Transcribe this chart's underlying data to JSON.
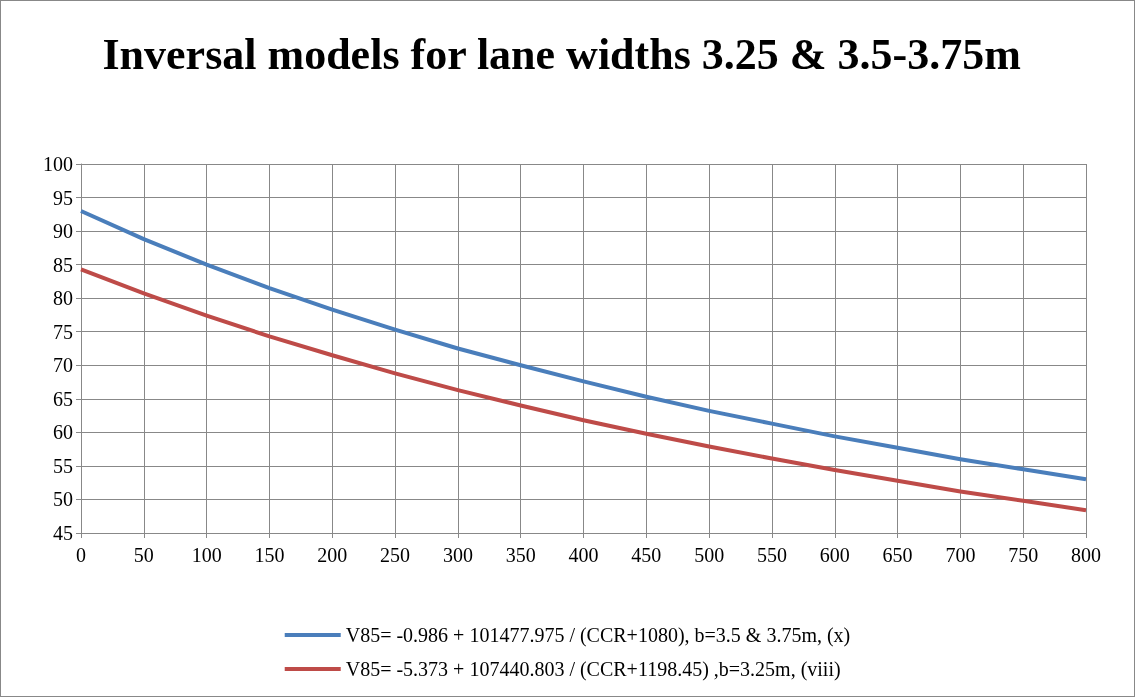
{
  "chart_data": {
    "type": "line",
    "title": "Inversal models for lane widths 3.25 & 3.5-3.75m",
    "x": [
      0,
      50,
      100,
      150,
      200,
      250,
      300,
      350,
      400,
      450,
      500,
      550,
      600,
      650,
      700,
      750,
      800
    ],
    "series": [
      {
        "name": "V85= -0.986 + 101477.975 / (CCR+1080), b=3.5 & 3.75m, (x)",
        "color": "#4a7ebb",
        "values": [
          93.0,
          88.8,
          85.0,
          81.5,
          78.3,
          75.3,
          72.5,
          70.0,
          67.6,
          65.3,
          63.2,
          61.3,
          59.4,
          57.7,
          56.0,
          54.5,
          53.0
        ]
      },
      {
        "name": "V85= -5.373 + 107440.803 / (CCR+1198.45) ,b=3.25m, (viii)",
        "color": "#be4b48",
        "values": [
          84.3,
          80.7,
          77.4,
          74.3,
          71.5,
          68.8,
          66.3,
          64.0,
          61.8,
          59.8,
          57.9,
          56.1,
          54.4,
          52.8,
          51.2,
          49.8,
          48.4
        ]
      }
    ],
    "xlim": [
      0,
      800
    ],
    "xticks": [
      0,
      50,
      100,
      150,
      200,
      250,
      300,
      350,
      400,
      450,
      500,
      550,
      600,
      650,
      700,
      750,
      800
    ],
    "ylim": [
      45,
      100
    ],
    "yticks": [
      45,
      50,
      55,
      60,
      65,
      70,
      75,
      80,
      85,
      90,
      95,
      100
    ],
    "grid": true,
    "legend": "bottom",
    "marker": "none",
    "line_style": "solid"
  }
}
